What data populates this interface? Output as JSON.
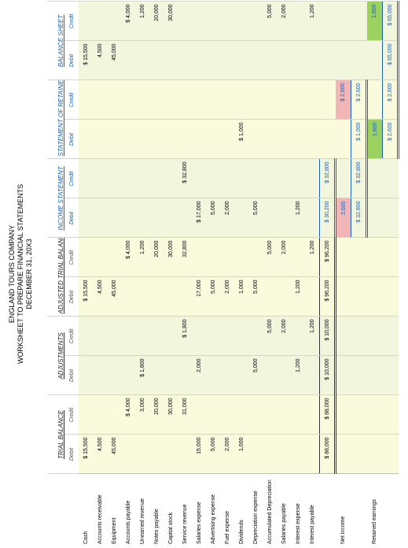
{
  "header": {
    "company": "ENGLAND TOURS COMPANY",
    "title": "WORKSHEET TO PREPARE FINANCIAL STATEMENTS",
    "date": "DECEMBER 31, 20X3"
  },
  "table": {
    "groups": [
      "TRIAL BALANCE",
      "ADJUSTMENTS",
      "ADJUSTED TRIAL BALANCE",
      "INCOME STATEMENT",
      "STATEMENT OF RETAINED EARNINGS",
      "BALANCE SHEET"
    ],
    "columns": [
      "Debit",
      "Credit",
      "Debit",
      "Credit",
      "Debit",
      "Credit",
      "Debit",
      "Credit",
      "Debit",
      "Credit",
      "Debit",
      "Credit"
    ],
    "rows": [
      {
        "label": "Cash",
        "cells": [
          "$ 15,500",
          null,
          null,
          null,
          "$ 15,500",
          null,
          null,
          null,
          null,
          null,
          "$ 15,500",
          null
        ]
      },
      {
        "label": "Accounts receivable",
        "cells": [
          "4,500",
          null,
          null,
          null,
          "4,500",
          null,
          null,
          null,
          null,
          null,
          "4,500",
          null
        ]
      },
      {
        "label": "Equipment",
        "cells": [
          "45,000",
          null,
          null,
          null,
          "45,000",
          null,
          null,
          null,
          null,
          null,
          "45,000",
          null
        ]
      },
      {
        "label": "Accounts payable",
        "cells": [
          null,
          "$ 4,000",
          null,
          null,
          null,
          "$ 4,000",
          null,
          null,
          null,
          null,
          null,
          "$ 4,000"
        ]
      },
      {
        "label": "Unearned revenue",
        "cells": [
          null,
          "3,000",
          "$ 1,800",
          null,
          null,
          "1,200",
          null,
          null,
          null,
          null,
          null,
          "1,200"
        ]
      },
      {
        "label": "Notes payable",
        "cells": [
          null,
          "20,000",
          null,
          null,
          null,
          "20,000",
          null,
          null,
          null,
          null,
          null,
          "20,000"
        ]
      },
      {
        "label": "Capital stock",
        "cells": [
          null,
          "30,000",
          null,
          null,
          null,
          "30,000",
          null,
          null,
          null,
          null,
          null,
          "30,000"
        ]
      },
      {
        "label": "Service revenue",
        "cells": [
          null,
          "31,000",
          null,
          "$ 1,800",
          null,
          "32,800",
          null,
          "$ 32,800",
          null,
          null,
          null,
          null
        ]
      },
      {
        "label": "Salaries expense",
        "cells": [
          "15,000",
          null,
          "2,000",
          null,
          "17,000",
          null,
          "$ 17,000",
          null,
          null,
          null,
          null,
          null
        ]
      },
      {
        "label": "Advertising expense",
        "cells": [
          "5,000",
          null,
          null,
          null,
          "5,000",
          null,
          "5,000",
          null,
          null,
          null,
          null,
          null
        ]
      },
      {
        "label": "Fuel expense",
        "cells": [
          "2,000",
          null,
          null,
          null,
          "2,000",
          null,
          "2,000",
          null,
          null,
          null,
          null,
          null
        ]
      },
      {
        "label": "Dividends",
        "cells": [
          "1,000",
          null,
          null,
          null,
          "1,000",
          null,
          null,
          null,
          "$ 1,000",
          null,
          null,
          null
        ]
      },
      {
        "label": "Depreciation expense",
        "cells": [
          null,
          null,
          "5,000",
          null,
          "5,000",
          null,
          "5,000",
          null,
          null,
          null,
          null,
          null
        ]
      },
      {
        "label": "Accumulated Depreciation",
        "cells": [
          null,
          null,
          null,
          "5,000",
          null,
          "5,000",
          null,
          null,
          null,
          null,
          null,
          "5,000"
        ]
      },
      {
        "label": "Salaries payable",
        "cells": [
          null,
          null,
          null,
          "2,000",
          null,
          "2,000",
          null,
          null,
          null,
          null,
          null,
          "2,000"
        ]
      },
      {
        "label": "Interest expense",
        "cells": [
          null,
          null,
          "1,200",
          null,
          "1,200",
          null,
          "1,200",
          null,
          null,
          null,
          null,
          null
        ]
      },
      {
        "label": "Interest payable",
        "cells": [
          null,
          null,
          null,
          "1,200",
          null,
          "1,200",
          null,
          null,
          null,
          null,
          null,
          "1,200"
        ]
      },
      {
        "label": null,
        "cells": [
          "$ 88,000",
          "$ 88,000",
          "$ 10,000",
          "$ 10,000",
          "$ 96,200",
          "$ 96,200",
          "$ 30,200",
          "$ 32,800",
          null,
          null,
          null,
          null
        ]
      },
      {
        "label": "Net income",
        "cells": [
          null,
          null,
          null,
          null,
          null,
          null,
          "2,600",
          null,
          null,
          "$ 2,600",
          null,
          null
        ]
      },
      {
        "label": null,
        "cells": [
          null,
          null,
          null,
          null,
          null,
          null,
          "$ 32,800",
          "$ 32,800",
          "$ 1,000",
          "$ 2,600",
          null,
          null
        ]
      },
      {
        "label": "Retained earnings",
        "cells": [
          null,
          null,
          null,
          null,
          null,
          null,
          null,
          null,
          "1,600",
          null,
          null,
          "1,600"
        ]
      },
      {
        "label": null,
        "cells": [
          null,
          null,
          null,
          null,
          null,
          null,
          null,
          null,
          "$ 2,600",
          "$ 2,600",
          "$ 65,000",
          "$ 65,000"
        ]
      }
    ]
  }
}
